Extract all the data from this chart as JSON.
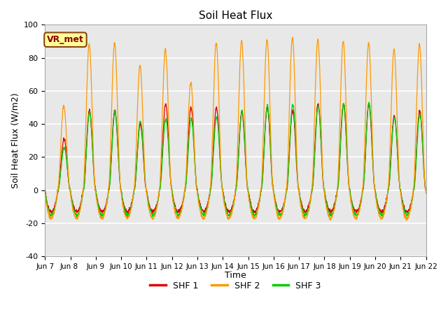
{
  "title": "Soil Heat Flux",
  "ylabel": "Soil Heat Flux (W/m2)",
  "xlabel": "Time",
  "ylim": [
    -40,
    100
  ],
  "n_days": 15,
  "fig_bg_color": "#ffffff",
  "plot_bg_color": "#e8e8e8",
  "grid_color": "white",
  "colors": {
    "SHF 1": "#dd0000",
    "SHF 2": "#ff9900",
    "SHF 3": "#00cc00"
  },
  "legend_labels": [
    "SHF 1",
    "SHF 2",
    "SHF 3"
  ],
  "xtick_labels": [
    "Jun 7",
    "Jun 8 ",
    "Jun 9",
    "Jun 10",
    "Jun 11",
    "Jun 12",
    "Jun 13",
    "Jun 14",
    "Jun 15",
    "Jun 16",
    "Jun 17",
    "Jun 18",
    "Jun 19",
    "Jun 20",
    "Jun 21",
    "Jun 22"
  ],
  "annotation_text": "VR_met",
  "yticks": [
    -40,
    -20,
    0,
    20,
    40,
    60,
    80,
    100
  ],
  "shf1_day_peaks": [
    31,
    48,
    48,
    40,
    52,
    50,
    50,
    47,
    50,
    48,
    52,
    52,
    52,
    45,
    48
  ],
  "shf2_day_peaks": [
    51,
    88,
    89,
    75,
    85,
    65,
    89,
    90,
    91,
    92,
    91,
    90,
    89,
    85,
    88
  ],
  "shf3_day_peaks": [
    26,
    47,
    47,
    42,
    43,
    43,
    44,
    48,
    51,
    52,
    51,
    52,
    53,
    44,
    46
  ],
  "shf1_night_trough": -13,
  "shf2_night_trough": -17,
  "shf3_night_trough": -15
}
